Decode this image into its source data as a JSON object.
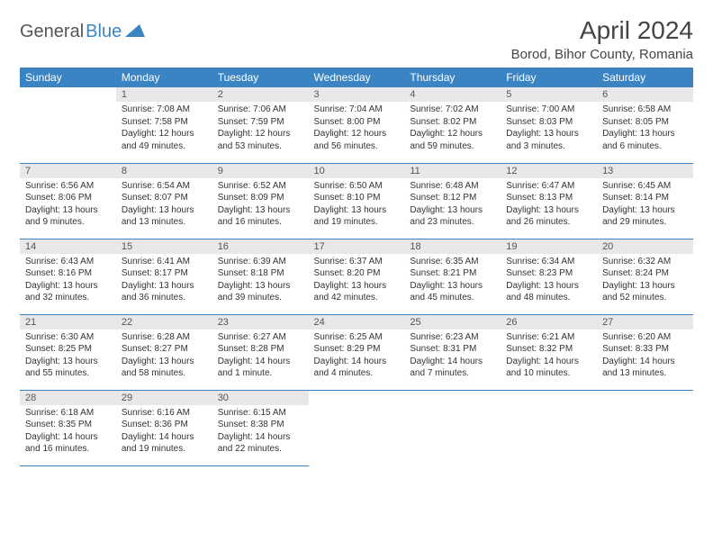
{
  "logo": {
    "part1": "General",
    "part2": "Blue"
  },
  "title": "April 2024",
  "location": "Borod, Bihor County, Romania",
  "colors": {
    "header_bg": "#3b84c4",
    "header_text": "#ffffff",
    "daynum_bg": "#e8e8e8",
    "border": "#3b84c4",
    "logo_gray": "#555555",
    "logo_blue": "#3b84c4"
  },
  "weekdays": [
    "Sunday",
    "Monday",
    "Tuesday",
    "Wednesday",
    "Thursday",
    "Friday",
    "Saturday"
  ],
  "weeks": [
    [
      null,
      {
        "n": "1",
        "sr": "Sunrise: 7:08 AM",
        "ss": "Sunset: 7:58 PM",
        "dl1": "Daylight: 12 hours",
        "dl2": "and 49 minutes."
      },
      {
        "n": "2",
        "sr": "Sunrise: 7:06 AM",
        "ss": "Sunset: 7:59 PM",
        "dl1": "Daylight: 12 hours",
        "dl2": "and 53 minutes."
      },
      {
        "n": "3",
        "sr": "Sunrise: 7:04 AM",
        "ss": "Sunset: 8:00 PM",
        "dl1": "Daylight: 12 hours",
        "dl2": "and 56 minutes."
      },
      {
        "n": "4",
        "sr": "Sunrise: 7:02 AM",
        "ss": "Sunset: 8:02 PM",
        "dl1": "Daylight: 12 hours",
        "dl2": "and 59 minutes."
      },
      {
        "n": "5",
        "sr": "Sunrise: 7:00 AM",
        "ss": "Sunset: 8:03 PM",
        "dl1": "Daylight: 13 hours",
        "dl2": "and 3 minutes."
      },
      {
        "n": "6",
        "sr": "Sunrise: 6:58 AM",
        "ss": "Sunset: 8:05 PM",
        "dl1": "Daylight: 13 hours",
        "dl2": "and 6 minutes."
      }
    ],
    [
      {
        "n": "7",
        "sr": "Sunrise: 6:56 AM",
        "ss": "Sunset: 8:06 PM",
        "dl1": "Daylight: 13 hours",
        "dl2": "and 9 minutes."
      },
      {
        "n": "8",
        "sr": "Sunrise: 6:54 AM",
        "ss": "Sunset: 8:07 PM",
        "dl1": "Daylight: 13 hours",
        "dl2": "and 13 minutes."
      },
      {
        "n": "9",
        "sr": "Sunrise: 6:52 AM",
        "ss": "Sunset: 8:09 PM",
        "dl1": "Daylight: 13 hours",
        "dl2": "and 16 minutes."
      },
      {
        "n": "10",
        "sr": "Sunrise: 6:50 AM",
        "ss": "Sunset: 8:10 PM",
        "dl1": "Daylight: 13 hours",
        "dl2": "and 19 minutes."
      },
      {
        "n": "11",
        "sr": "Sunrise: 6:48 AM",
        "ss": "Sunset: 8:12 PM",
        "dl1": "Daylight: 13 hours",
        "dl2": "and 23 minutes."
      },
      {
        "n": "12",
        "sr": "Sunrise: 6:47 AM",
        "ss": "Sunset: 8:13 PM",
        "dl1": "Daylight: 13 hours",
        "dl2": "and 26 minutes."
      },
      {
        "n": "13",
        "sr": "Sunrise: 6:45 AM",
        "ss": "Sunset: 8:14 PM",
        "dl1": "Daylight: 13 hours",
        "dl2": "and 29 minutes."
      }
    ],
    [
      {
        "n": "14",
        "sr": "Sunrise: 6:43 AM",
        "ss": "Sunset: 8:16 PM",
        "dl1": "Daylight: 13 hours",
        "dl2": "and 32 minutes."
      },
      {
        "n": "15",
        "sr": "Sunrise: 6:41 AM",
        "ss": "Sunset: 8:17 PM",
        "dl1": "Daylight: 13 hours",
        "dl2": "and 36 minutes."
      },
      {
        "n": "16",
        "sr": "Sunrise: 6:39 AM",
        "ss": "Sunset: 8:18 PM",
        "dl1": "Daylight: 13 hours",
        "dl2": "and 39 minutes."
      },
      {
        "n": "17",
        "sr": "Sunrise: 6:37 AM",
        "ss": "Sunset: 8:20 PM",
        "dl1": "Daylight: 13 hours",
        "dl2": "and 42 minutes."
      },
      {
        "n": "18",
        "sr": "Sunrise: 6:35 AM",
        "ss": "Sunset: 8:21 PM",
        "dl1": "Daylight: 13 hours",
        "dl2": "and 45 minutes."
      },
      {
        "n": "19",
        "sr": "Sunrise: 6:34 AM",
        "ss": "Sunset: 8:23 PM",
        "dl1": "Daylight: 13 hours",
        "dl2": "and 48 minutes."
      },
      {
        "n": "20",
        "sr": "Sunrise: 6:32 AM",
        "ss": "Sunset: 8:24 PM",
        "dl1": "Daylight: 13 hours",
        "dl2": "and 52 minutes."
      }
    ],
    [
      {
        "n": "21",
        "sr": "Sunrise: 6:30 AM",
        "ss": "Sunset: 8:25 PM",
        "dl1": "Daylight: 13 hours",
        "dl2": "and 55 minutes."
      },
      {
        "n": "22",
        "sr": "Sunrise: 6:28 AM",
        "ss": "Sunset: 8:27 PM",
        "dl1": "Daylight: 13 hours",
        "dl2": "and 58 minutes."
      },
      {
        "n": "23",
        "sr": "Sunrise: 6:27 AM",
        "ss": "Sunset: 8:28 PM",
        "dl1": "Daylight: 14 hours",
        "dl2": "and 1 minute."
      },
      {
        "n": "24",
        "sr": "Sunrise: 6:25 AM",
        "ss": "Sunset: 8:29 PM",
        "dl1": "Daylight: 14 hours",
        "dl2": "and 4 minutes."
      },
      {
        "n": "25",
        "sr": "Sunrise: 6:23 AM",
        "ss": "Sunset: 8:31 PM",
        "dl1": "Daylight: 14 hours",
        "dl2": "and 7 minutes."
      },
      {
        "n": "26",
        "sr": "Sunrise: 6:21 AM",
        "ss": "Sunset: 8:32 PM",
        "dl1": "Daylight: 14 hours",
        "dl2": "and 10 minutes."
      },
      {
        "n": "27",
        "sr": "Sunrise: 6:20 AM",
        "ss": "Sunset: 8:33 PM",
        "dl1": "Daylight: 14 hours",
        "dl2": "and 13 minutes."
      }
    ],
    [
      {
        "n": "28",
        "sr": "Sunrise: 6:18 AM",
        "ss": "Sunset: 8:35 PM",
        "dl1": "Daylight: 14 hours",
        "dl2": "and 16 minutes."
      },
      {
        "n": "29",
        "sr": "Sunrise: 6:16 AM",
        "ss": "Sunset: 8:36 PM",
        "dl1": "Daylight: 14 hours",
        "dl2": "and 19 minutes."
      },
      {
        "n": "30",
        "sr": "Sunrise: 6:15 AM",
        "ss": "Sunset: 8:38 PM",
        "dl1": "Daylight: 14 hours",
        "dl2": "and 22 minutes."
      },
      null,
      null,
      null,
      null
    ]
  ]
}
